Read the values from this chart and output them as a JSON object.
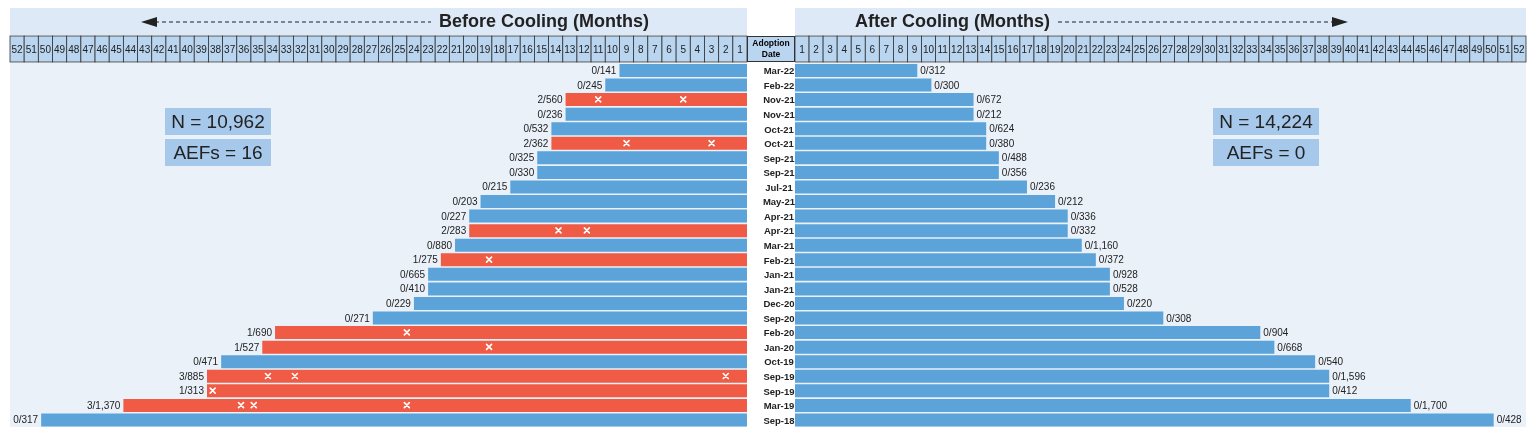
{
  "chart_data": [
    {
      "type": "bar",
      "orientation": "horizontal",
      "xlabel": "Before Cooling (Months)",
      "ylabel": "Adoption Date",
      "marker": "cross",
      "categories": [
        "Mar-22",
        "Feb-22",
        "Nov-21",
        "Nov-21",
        "Oct-21",
        "Oct-21",
        "Sep-21",
        "Sep-21",
        "Jul-21",
        "May-21",
        "Apr-21",
        "Apr-21",
        "Mar-21",
        "Feb-21",
        "Jan-21",
        "Jan-21",
        "Dec-20",
        "Sep-20",
        "Feb-20",
        "Jan-20",
        "Oct-19",
        "Sep-19",
        "Sep-19",
        "Mar-19",
        "Sep-18"
      ],
      "series": [
        {
          "type": "bar",
          "values": [
            9,
            10,
            12.8,
            12.8,
            13.8,
            13.8,
            14.8,
            14.8,
            16.7,
            18.8,
            19.6,
            19.6,
            20.6,
            21.6,
            22.5,
            22.5,
            23.5,
            26.4,
            33.3,
            34.2,
            37.1,
            38.1,
            38.1,
            44,
            49.8
          ],
          "colors": [
            "#5ba3d9",
            "#5ba3d9",
            "#ef5b45",
            "#5ba3d9",
            "#5ba3d9",
            "#ef5b45",
            "#5ba3d9",
            "#5ba3d9",
            "#5ba3d9",
            "#5ba3d9",
            "#5ba3d9",
            "#ef5b45",
            "#5ba3d9",
            "#ef5b45",
            "#5ba3d9",
            "#5ba3d9",
            "#5ba3d9",
            "#5ba3d9",
            "#ef5b45",
            "#ef5b45",
            "#5ba3d9",
            "#ef5b45",
            "#ef5b45",
            "#ef5b45",
            "#5ba3d9"
          ],
          "value_labels": [
            "0/141",
            "0/245",
            "2/560",
            "0/236",
            "0/532",
            "2/362",
            "0/325",
            "0/330",
            "0/215",
            "0/203",
            "0/227",
            "2/283",
            "0/880",
            "1/275",
            "0/665",
            "0/410",
            "0/229",
            "0/271",
            "1/690",
            "1/527",
            "0/471",
            "3/885",
            "1/313",
            "3/1,370",
            "0/317"
          ]
        },
        {
          "type": "scatter",
          "color": "#ffffff",
          "values": [
            null,
            null,
            10.5,
            null,
            null,
            8.5,
            null,
            null,
            null,
            null,
            null,
            13.3,
            null,
            18.2,
            null,
            null,
            null,
            null,
            24,
            18.2,
            null,
            33.8,
            37.7,
            35.7,
            null
          ]
        },
        {
          "type": "scatter",
          "color": "#ffffff",
          "values": [
            null,
            null,
            4.5,
            null,
            null,
            2.5,
            null,
            null,
            null,
            null,
            null,
            11.3,
            null,
            null,
            null,
            null,
            null,
            null,
            null,
            null,
            null,
            31.9,
            null,
            34.8,
            null
          ]
        },
        {
          "type": "scatter",
          "color": "#ffffff",
          "values": [
            null,
            null,
            null,
            null,
            null,
            null,
            null,
            null,
            null,
            null,
            null,
            null,
            null,
            null,
            null,
            null,
            null,
            null,
            null,
            null,
            null,
            1.5,
            null,
            24,
            null
          ]
        }
      ],
      "xlim": [
        52,
        0
      ],
      "xticks": [
        {
          "value": 51.5,
          "label": "52"
        },
        {
          "value": 50.5,
          "label": "51"
        },
        {
          "value": 49.5,
          "label": "50"
        },
        {
          "value": 48.5,
          "label": "49"
        },
        {
          "value": 47.5,
          "label": "48"
        },
        {
          "value": 46.5,
          "label": "47"
        },
        {
          "value": 45.5,
          "label": "46"
        },
        {
          "value": 44.5,
          "label": "45"
        },
        {
          "value": 43.5,
          "label": "44"
        },
        {
          "value": 42.5,
          "label": "43"
        },
        {
          "value": 41.5,
          "label": "42"
        },
        {
          "value": 40.5,
          "label": "41"
        },
        {
          "value": 39.5,
          "label": "40"
        },
        {
          "value": 38.5,
          "label": "39"
        },
        {
          "value": 37.5,
          "label": "38"
        },
        {
          "value": 36.5,
          "label": "37"
        },
        {
          "value": 35.5,
          "label": "36"
        },
        {
          "value": 34.5,
          "label": "35"
        },
        {
          "value": 33.5,
          "label": "34"
        },
        {
          "value": 32.5,
          "label": "33"
        },
        {
          "value": 31.5,
          "label": "32"
        },
        {
          "value": 30.5,
          "label": "31"
        },
        {
          "value": 29.5,
          "label": "30"
        },
        {
          "value": 28.5,
          "label": "29"
        },
        {
          "value": 27.5,
          "label": "28"
        },
        {
          "value": 26.5,
          "label": "27"
        },
        {
          "value": 25.5,
          "label": "26"
        },
        {
          "value": 24.5,
          "label": "25"
        },
        {
          "value": 23.5,
          "label": "24"
        },
        {
          "value": 22.5,
          "label": "23"
        },
        {
          "value": 21.5,
          "label": "22"
        },
        {
          "value": 20.5,
          "label": "21"
        },
        {
          "value": 19.5,
          "label": "20"
        },
        {
          "value": 18.5,
          "label": "19"
        },
        {
          "value": 17.5,
          "label": "18"
        },
        {
          "value": 16.5,
          "label": "17"
        },
        {
          "value": 15.5,
          "label": "16"
        },
        {
          "value": 14.5,
          "label": "15"
        },
        {
          "value": 13.5,
          "label": "14"
        },
        {
          "value": 12.5,
          "label": "13"
        },
        {
          "value": 11.5,
          "label": "12"
        },
        {
          "value": 10.5,
          "label": "11"
        },
        {
          "value": 9.5,
          "label": "10"
        },
        {
          "value": 8.5,
          "label": "9"
        },
        {
          "value": 7.5,
          "label": "8"
        },
        {
          "value": 6.5,
          "label": "7"
        },
        {
          "value": 5.5,
          "label": "6"
        },
        {
          "value": 4.5,
          "label": "5"
        },
        {
          "value": 3.5,
          "label": "4"
        },
        {
          "value": 2.5,
          "label": "3"
        },
        {
          "value": 1.5,
          "label": "2"
        },
        {
          "value": 0.5,
          "label": "1"
        }
      ],
      "annotations": [
        "N = 10,962",
        "AEFs = 16"
      ]
    },
    {
      "type": "bar",
      "orientation": "horizontal",
      "xlabel": "After Cooling (Months)",
      "tick_labels": "x",
      "categories": [
        null,
        null,
        null,
        null,
        null,
        null,
        null,
        null,
        null,
        null,
        null,
        null,
        null,
        null,
        null,
        null,
        null,
        null,
        null,
        null,
        null,
        null,
        null,
        null,
        null
      ],
      "series": [
        {
          "type": "bar",
          "color": "#5ba3d9",
          "values": [
            8.7,
            9.7,
            12.7,
            12.7,
            13.6,
            13.6,
            14.5,
            14.5,
            16.5,
            18.5,
            19.4,
            19.4,
            20.4,
            21.4,
            22.4,
            22.4,
            23.4,
            26.2,
            33.1,
            34.1,
            37,
            38,
            38,
            43.8,
            49.7
          ],
          "value_labels": [
            "0/312",
            "0/300",
            "0/672",
            "0/212",
            "0/624",
            "0/380",
            "0/488",
            "0/356",
            "0/236",
            "0/212",
            "0/336",
            "0/332",
            "0/1,160",
            "0/372",
            "0/928",
            "0/528",
            "0/220",
            "0/308",
            "0/904",
            "0/668",
            "0/540",
            "0/1,596",
            "0/412",
            "0/1,700",
            "0/428"
          ]
        }
      ],
      "xlim": [
        0,
        52
      ],
      "xticks": [
        {
          "value": 0.5,
          "label": "1"
        },
        {
          "value": 1.5,
          "label": "2"
        },
        {
          "value": 2.5,
          "label": "3"
        },
        {
          "value": 3.5,
          "label": "4"
        },
        {
          "value": 4.5,
          "label": "5"
        },
        {
          "value": 5.5,
          "label": "6"
        },
        {
          "value": 6.5,
          "label": "7"
        },
        {
          "value": 7.5,
          "label": "8"
        },
        {
          "value": 8.5,
          "label": "9"
        },
        {
          "value": 9.5,
          "label": "10"
        },
        {
          "value": 10.5,
          "label": "11"
        },
        {
          "value": 11.5,
          "label": "12"
        },
        {
          "value": 12.5,
          "label": "13"
        },
        {
          "value": 13.5,
          "label": "14"
        },
        {
          "value": 14.5,
          "label": "15"
        },
        {
          "value": 15.5,
          "label": "16"
        },
        {
          "value": 16.5,
          "label": "17"
        },
        {
          "value": 17.5,
          "label": "18"
        },
        {
          "value": 18.5,
          "label": "19"
        },
        {
          "value": 19.5,
          "label": "20"
        },
        {
          "value": 20.5,
          "label": "21"
        },
        {
          "value": 21.5,
          "label": "22"
        },
        {
          "value": 22.5,
          "label": "23"
        },
        {
          "value": 23.5,
          "label": "24"
        },
        {
          "value": 24.5,
          "label": "25"
        },
        {
          "value": 25.5,
          "label": "26"
        },
        {
          "value": 26.5,
          "label": "27"
        },
        {
          "value": 27.5,
          "label": "28"
        },
        {
          "value": 28.5,
          "label": "29"
        },
        {
          "value": 29.5,
          "label": "30"
        },
        {
          "value": 30.5,
          "label": "31"
        },
        {
          "value": 31.5,
          "label": "32"
        },
        {
          "value": 32.5,
          "label": "33"
        },
        {
          "value": 33.5,
          "label": "34"
        },
        {
          "value": 34.5,
          "label": "35"
        },
        {
          "value": 35.5,
          "label": "36"
        },
        {
          "value": 36.5,
          "label": "37"
        },
        {
          "value": 37.5,
          "label": "38"
        },
        {
          "value": 38.5,
          "label": "39"
        },
        {
          "value": 39.5,
          "label": "40"
        },
        {
          "value": 40.5,
          "label": "41"
        },
        {
          "value": 41.5,
          "label": "42"
        },
        {
          "value": 42.5,
          "label": "43"
        },
        {
          "value": 43.5,
          "label": "44"
        },
        {
          "value": 44.5,
          "label": "45"
        },
        {
          "value": 45.5,
          "label": "46"
        },
        {
          "value": 46.5,
          "label": "47"
        },
        {
          "value": 47.5,
          "label": "48"
        },
        {
          "value": 48.5,
          "label": "49"
        },
        {
          "value": 49.5,
          "label": "50"
        },
        {
          "value": 50.5,
          "label": "51"
        },
        {
          "value": 51.5,
          "label": "52"
        }
      ],
      "annotations": [
        "N = 14,224",
        "AEFs = 0"
      ]
    }
  ]
}
